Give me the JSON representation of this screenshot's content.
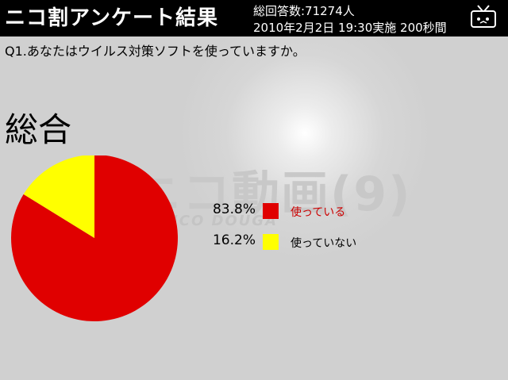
{
  "header": {
    "title": "ニコ割アンケート結果",
    "total_votes": "総回答数:71274人",
    "survey_info": "2010年2月2日 19:30実施 200秒間"
  },
  "question": "Q1.あなたはウイルス対策ソフトを使っていますか。",
  "section_title": "総合",
  "watermark": {
    "main": "ニコ動画(9)",
    "sub": "NICO DOUGA"
  },
  "chart_data": {
    "type": "pie",
    "title": "総合",
    "slices": [
      {
        "label": "使っている",
        "value": 83.8,
        "value_label": "83.8%",
        "color": "#e00000",
        "label_color": "#cc0000"
      },
      {
        "label": "使っていない",
        "value": 16.2,
        "value_label": "16.2%",
        "color": "#ffff00",
        "label_color": "#000000"
      }
    ],
    "start_angle_deg": 0,
    "direction": "clockwise",
    "legend_position": "right"
  },
  "icons": {
    "header_logo": "tv-icon"
  }
}
